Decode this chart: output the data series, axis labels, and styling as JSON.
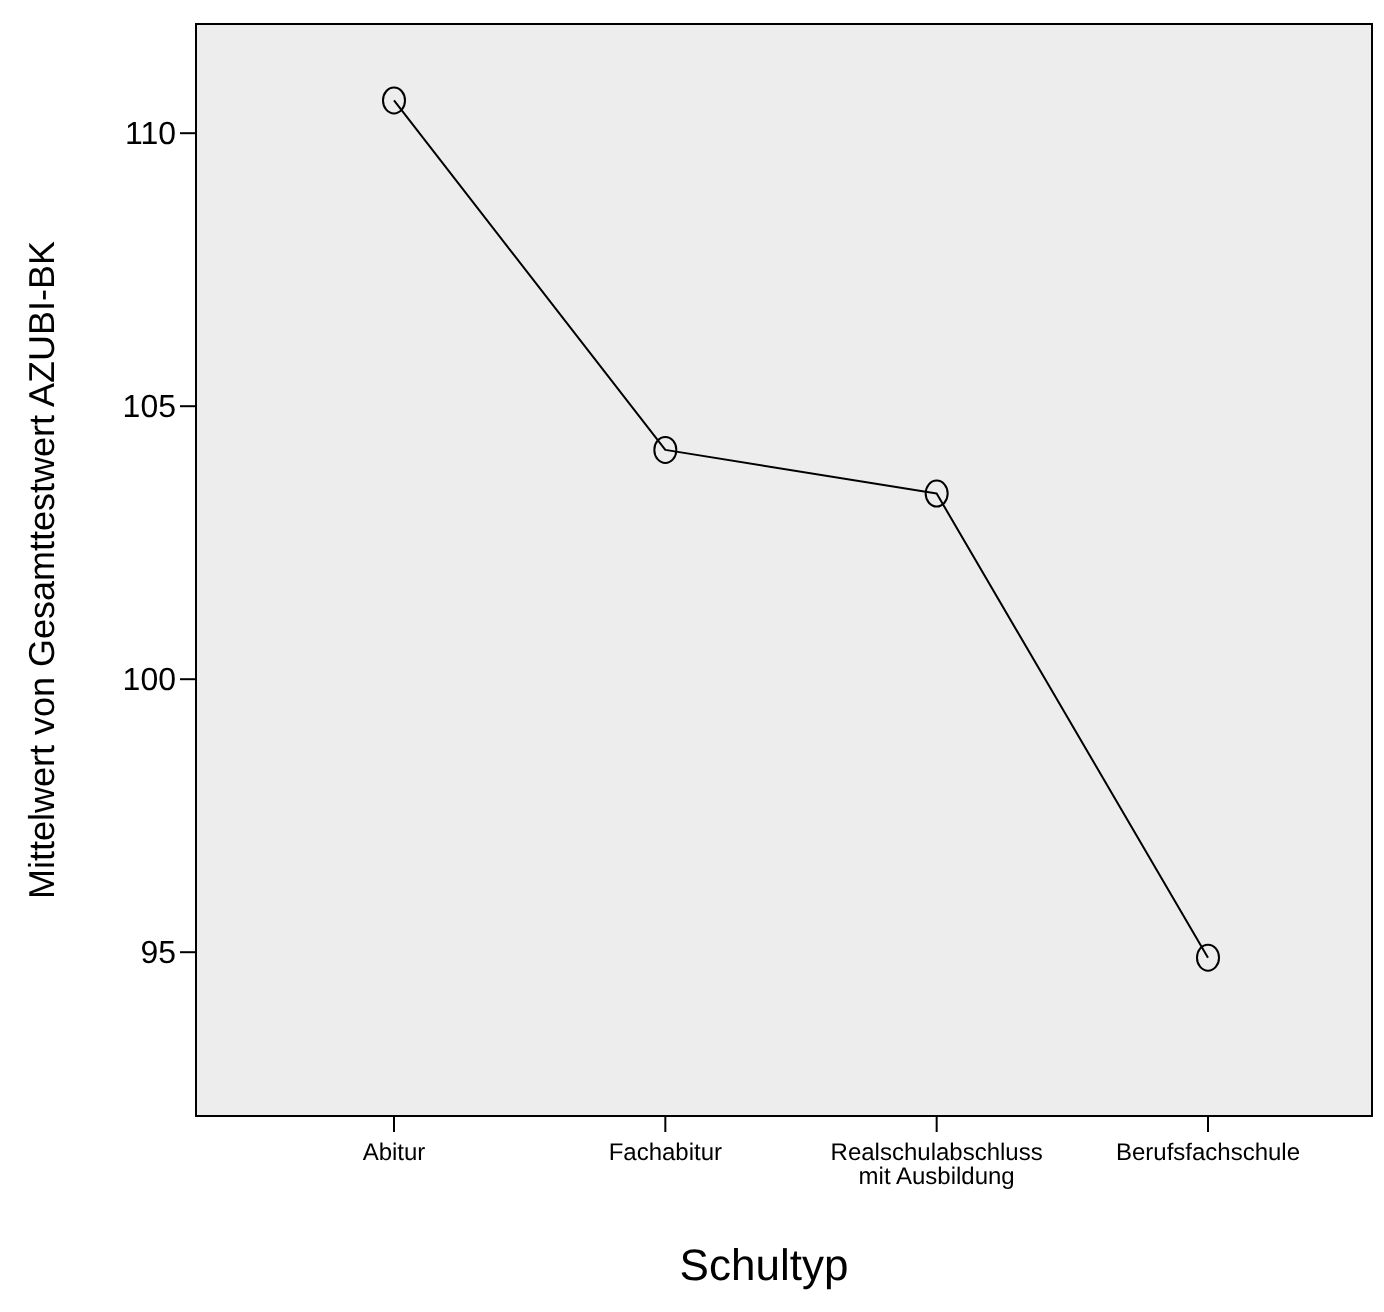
{
  "chart_data": {
    "type": "line",
    "xlabel": "Schultyp",
    "ylabel": "Mittelwert von Gesamttestwert AZUBI-BK",
    "categories": [
      "Abitur",
      "Fachabitur",
      "Realschulabschluss mit Ausbildung",
      "Berufsfachschule"
    ],
    "values": [
      110.6,
      104.2,
      103.4,
      94.9
    ],
    "color": "#000000",
    "marker": "circle",
    "ylim": [
      92,
      112
    ],
    "yticks": [
      95,
      100,
      105,
      110
    ],
    "grid": false
  }
}
